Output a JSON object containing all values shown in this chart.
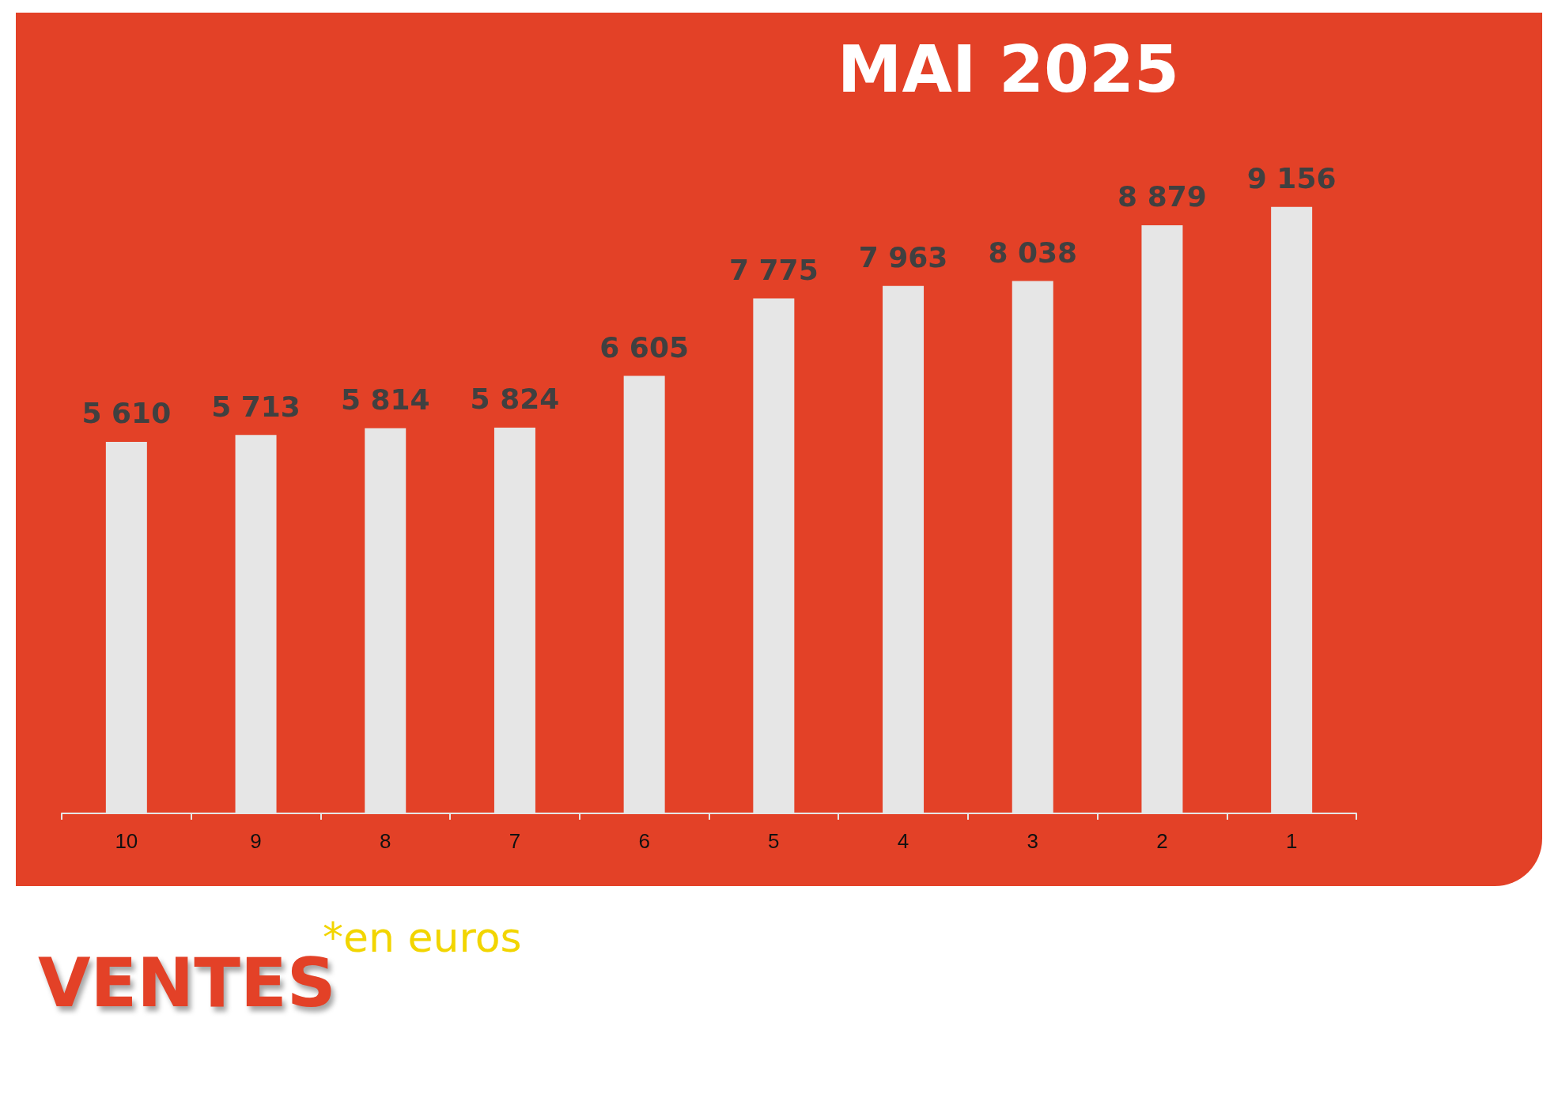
{
  "chart_data": {
    "type": "bar",
    "title": "MAI 2025",
    "annotations": [
      "VENTES",
      "*en euros"
    ],
    "categories": [
      "10",
      "9",
      "8",
      "7",
      "6",
      "5",
      "4",
      "3",
      "2",
      "1"
    ],
    "values": [
      5610,
      5713,
      5814,
      5824,
      6605,
      7775,
      7963,
      8038,
      8879,
      9156
    ],
    "value_labels": [
      "5 610",
      "5 713",
      "5 814",
      "5 824",
      "6 605",
      "7 775",
      "7 963",
      "8 038",
      "8 879",
      "9 156"
    ],
    "color": "#e6e6e6",
    "grid": false
  }
}
